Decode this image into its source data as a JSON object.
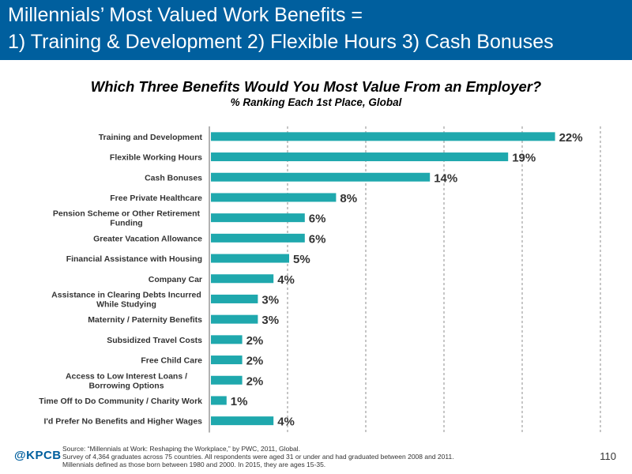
{
  "header": {
    "title_line1": "Millennials’ Most Valued Work Benefits =",
    "title_line2": "1) Training & Development  2) Flexible Hours  3) Cash Bonuses"
  },
  "chart_data": {
    "type": "bar",
    "orientation": "horizontal",
    "title": "Which Three Benefits Would You Most Value From an Employer?",
    "subtitle": "% Ranking Each 1st Place, Global",
    "categories": [
      "Training and Development",
      "Flexible Working Hours",
      "Cash Bonuses",
      "Free Private Healthcare",
      "Pension Scheme or Other Retirement Funding",
      "Greater Vacation Allowance",
      "Financial Assistance with Housing",
      "Company Car",
      "Assistance in Clearing Debts Incurred While Studying",
      "Maternity / Paternity Benefits",
      "Subsidized Travel Costs",
      "Free Child Care",
      "Access to Low Interest Loans / Borrowing Options",
      "Time Off to Do Community / Charity Work",
      "I'd Prefer No Benefits and Higher Wages"
    ],
    "category_lines": [
      [
        "Training and Development"
      ],
      [
        "Flexible Working Hours"
      ],
      [
        "Cash Bonuses"
      ],
      [
        "Free Private Healthcare"
      ],
      [
        "Pension Scheme or Other Retirement",
        "Funding"
      ],
      [
        "Greater Vacation Allowance"
      ],
      [
        "Financial Assistance with Housing"
      ],
      [
        "Company Car"
      ],
      [
        "Assistance in Clearing Debts Incurred",
        "While Studying"
      ],
      [
        "Maternity / Paternity Benefits"
      ],
      [
        "Subsidized Travel Costs"
      ],
      [
        "Free Child Care"
      ],
      [
        "Access to Low Interest Loans /",
        "Borrowing Options"
      ],
      [
        "Time Off to Do Community / Charity Work"
      ],
      [
        "I'd Prefer No Benefits and Higher Wages"
      ]
    ],
    "values": [
      22,
      19,
      14,
      8,
      6,
      6,
      5,
      4,
      3,
      3,
      2,
      2,
      2,
      1,
      4
    ],
    "value_labels": [
      "22%",
      "19%",
      "14%",
      "8%",
      "6%",
      "6%",
      "5%",
      "4%",
      "3%",
      "3%",
      "2%",
      "2%",
      "2%",
      "1%",
      "4%"
    ],
    "xlim": [
      0,
      25
    ],
    "grid_step": 5,
    "grid": true,
    "bar_color": "#1fa8ad"
  },
  "footer": {
    "logo": "@KPCB",
    "source_lines": [
      "Source: “Millennials at Work: Reshaping the Workplace,” by PWC, 2011, Global.",
      "Survey of 4,364 graduates across 75 countries. All respondents were aged 31 or under and had graduated between 2008 and 2011.",
      "Millennials defined as those born between 1980 and 2000. In 2015, they are ages 15-35."
    ],
    "page_number": "110"
  }
}
